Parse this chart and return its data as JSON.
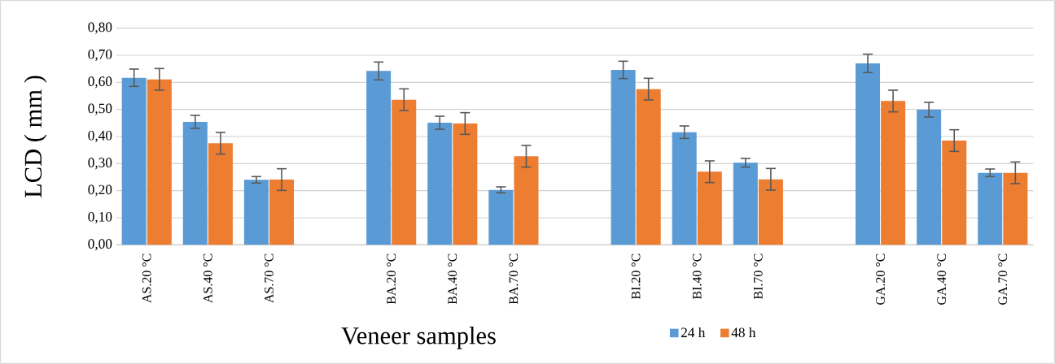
{
  "chart_data": {
    "type": "bar",
    "categories": [
      "AS.20 °C",
      "AS.40 °C",
      "AS.70 °C",
      null,
      "BA.20 °C",
      "BA.40 °C",
      "BA.70 °C",
      null,
      "BI.20 °C",
      "BI.40 °C",
      "BI.70 °C",
      null,
      "GA.20 °C",
      "GA.40 °C",
      "GA.70 °C"
    ],
    "series": [
      {
        "name": "24 h",
        "color": "#5b9bd5",
        "values": [
          0.617,
          0.454,
          0.24,
          null,
          0.642,
          0.451,
          0.203,
          null,
          0.646,
          0.416,
          0.303,
          null,
          0.67,
          0.499,
          0.266
        ],
        "errors": [
          0.032,
          0.024,
          0.012,
          null,
          0.033,
          0.024,
          0.011,
          null,
          0.032,
          0.023,
          0.016,
          null,
          0.034,
          0.027,
          0.014
        ]
      },
      {
        "name": "48 h",
        "color": "#ed7d31",
        "values": [
          0.611,
          0.375,
          0.241,
          null,
          0.536,
          0.448,
          0.327,
          null,
          0.575,
          0.27,
          0.242,
          null,
          0.531,
          0.385,
          0.266
        ],
        "errors": [
          0.04,
          0.04,
          0.04,
          null,
          0.04,
          0.04,
          0.04,
          null,
          0.04,
          0.04,
          0.04,
          null,
          0.04,
          0.04,
          0.04
        ]
      }
    ],
    "ylim": [
      0,
      0.8
    ],
    "yticks": [
      {
        "value": 0,
        "label": "0,00"
      },
      {
        "value": 0.1,
        "label": "0,10"
      },
      {
        "value": 0.2,
        "label": "0,20"
      },
      {
        "value": 0.3,
        "label": "0,30"
      },
      {
        "value": 0.4,
        "label": "0,40"
      },
      {
        "value": 0.5,
        "label": "0,50"
      },
      {
        "value": 0.6,
        "label": "0,60"
      },
      {
        "value": 0.7,
        "label": "0,70"
      },
      {
        "value": 0.8,
        "label": "0,80"
      }
    ],
    "xlabel": "Veneer samples",
    "ylabel": "LCD ( mm )",
    "grid": "y",
    "legend": "bottom"
  }
}
